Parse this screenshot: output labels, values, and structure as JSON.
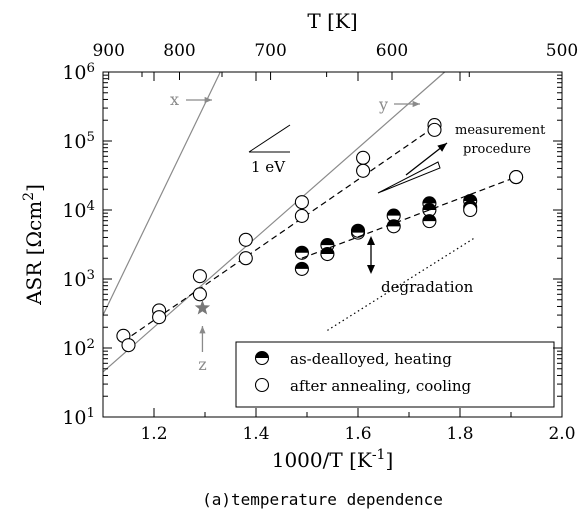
{
  "chart_data": {
    "type": "scatter",
    "caption": "(a)temperature dependence",
    "xlabel": "1000/T [K",
    "xlabel_sup": "-1",
    "xlabel_end": "]",
    "x2label": "T [K]",
    "ylabel": "ASR [Ωcm",
    "ylabel_sup": "2",
    "ylabel_end": "]",
    "ylog": true,
    "xlim": [
      1.1,
      2.0
    ],
    "ylim_exp": [
      1,
      6
    ],
    "x_ticks": [
      "1.2",
      "1.4",
      "1.6",
      "1.8",
      "2.0"
    ],
    "x_tick_values": [
      1.2,
      1.4,
      1.6,
      1.8,
      2.0
    ],
    "x2_ticks": [
      "900",
      "800",
      "700",
      "600",
      "500"
    ],
    "x2_tick_values": [
      900,
      800,
      700,
      600,
      500
    ],
    "y_tick_base": "10",
    "y_tick_exps": [
      "1",
      "2",
      "3",
      "4",
      "5",
      "6"
    ],
    "grid": false,
    "legend_position": "bottom-right",
    "series": [
      {
        "name": "as-dealloyed, heating",
        "marker": "half-filled-circle",
        "points": [
          [
            1.49,
            1400
          ],
          [
            1.49,
            2400
          ],
          [
            1.54,
            2300
          ],
          [
            1.54,
            3100
          ],
          [
            1.6,
            4700
          ],
          [
            1.6,
            5000
          ],
          [
            1.67,
            5800
          ],
          [
            1.67,
            8300
          ],
          [
            1.74,
            6900
          ],
          [
            1.74,
            10000
          ],
          [
            1.74,
            12500
          ],
          [
            1.82,
            11000
          ],
          [
            1.82,
            13500
          ],
          [
            1.91,
            30000
          ]
        ],
        "trend_line": [
          [
            1.49,
            2000
          ],
          [
            1.91,
            30000
          ]
        ]
      },
      {
        "name": "after annealing, cooling",
        "marker": "open-circle",
        "points": [
          [
            1.14,
            150
          ],
          [
            1.15,
            110
          ],
          [
            1.21,
            350
          ],
          [
            1.21,
            280
          ],
          [
            1.29,
            1100
          ],
          [
            1.29,
            600
          ],
          [
            1.38,
            3700
          ],
          [
            1.38,
            2000
          ],
          [
            1.49,
            13000
          ],
          [
            1.49,
            8200
          ],
          [
            1.61,
            57000
          ],
          [
            1.61,
            37000
          ],
          [
            1.75,
            170000
          ],
          [
            1.75,
            145000
          ],
          [
            1.82,
            10000
          ],
          [
            1.91,
            30000
          ]
        ],
        "trend_line": [
          [
            1.14,
            125
          ],
          [
            1.75,
            160000
          ]
        ]
      }
    ],
    "reference_lines": [
      {
        "label": "x",
        "points": [
          [
            1.1,
            300
          ],
          [
            1.33,
            1000000
          ]
        ]
      },
      {
        "label": "y",
        "points": [
          [
            1.1,
            45
          ],
          [
            1.77,
            1000000
          ]
        ]
      }
    ],
    "star_point": {
      "label": "z",
      "x": 1.295,
      "y": 380
    },
    "slope_label": "1 eV",
    "measurement_label": [
      "measurement",
      "procedure"
    ],
    "degradation_label": "degradation",
    "dotted_guide": [
      [
        1.54,
        180
      ],
      [
        1.83,
        4000
      ]
    ],
    "colors": {
      "axis": "#000000",
      "reference": "#8a8a8a",
      "star": "#777777"
    }
  }
}
